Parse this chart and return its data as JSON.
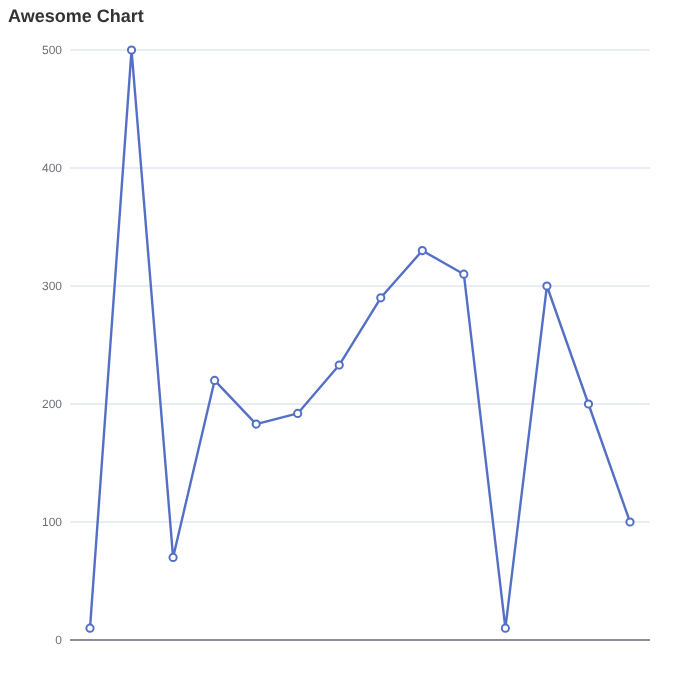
{
  "chart_data": {
    "type": "line",
    "title": "Awesome Chart",
    "categories": [
      null,
      null,
      null,
      null,
      null,
      null,
      null,
      null,
      null,
      null,
      null,
      null,
      null,
      null
    ],
    "series": [
      {
        "color": "#5470c6",
        "values": [
          10,
          500,
          70,
          220,
          183,
          192,
          233,
          290,
          330,
          310,
          10,
          300,
          200,
          100
        ]
      }
    ],
    "ylim": [
      0,
      500
    ],
    "yticks": [
      0,
      100,
      200,
      300,
      400,
      500
    ],
    "grid": "y",
    "marker": "circle",
    "line_style": "solid"
  }
}
